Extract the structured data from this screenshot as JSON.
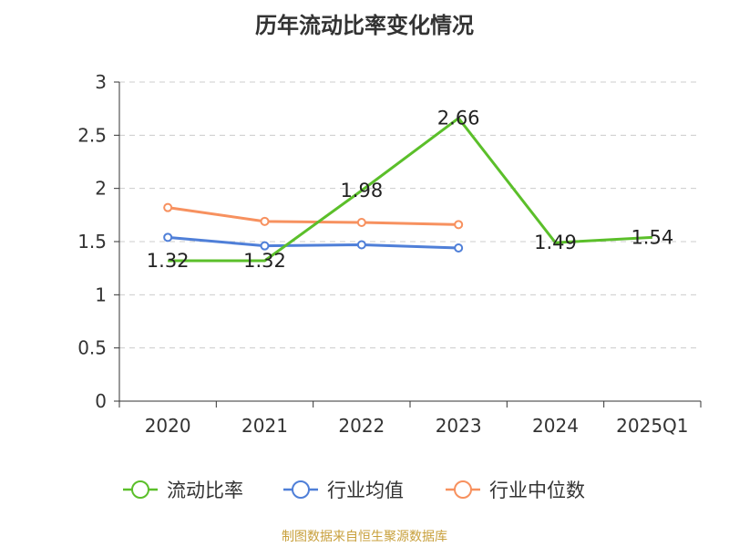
{
  "colors": {
    "current_ratio": "#5bbf2a",
    "industry_avg": "#4f7fd8",
    "industry_median": "#f7915f",
    "grid": "#cccccc",
    "axis": "#333333",
    "footer": "#c8a03c"
  },
  "chart_data": {
    "type": "line",
    "title": "历年流动比率变化情况",
    "categories": [
      "2020",
      "2021",
      "2022",
      "2023",
      "2024",
      "2025Q1"
    ],
    "ylim": [
      0,
      3
    ],
    "yticks": [
      "0",
      "0.5",
      "1",
      "1.5",
      "2",
      "2.5",
      "3"
    ],
    "grid": true,
    "legend_position": "bottom",
    "series": [
      {
        "name": "流动比率",
        "values": [
          1.32,
          1.32,
          1.98,
          2.66,
          1.49,
          1.54
        ],
        "labels": [
          "1.32",
          "1.32",
          "1.98",
          "2.66",
          "1.49",
          "1.54"
        ]
      },
      {
        "name": "行业均值",
        "values": [
          1.54,
          1.46,
          1.47,
          1.44,
          null,
          null
        ]
      },
      {
        "name": "行业中位数",
        "values": [
          1.82,
          1.69,
          1.68,
          1.66,
          null,
          null
        ]
      }
    ]
  },
  "footer": {
    "source": "制图数据来自恒生聚源数据库"
  }
}
